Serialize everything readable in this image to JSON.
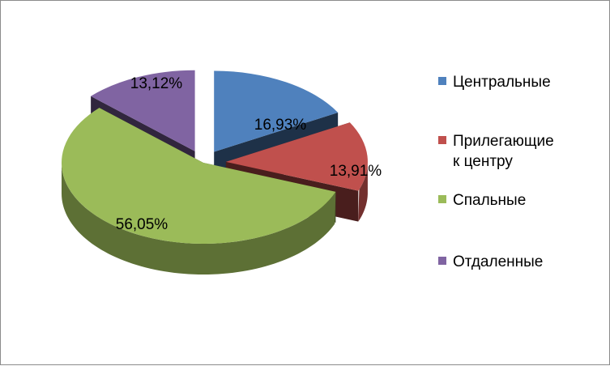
{
  "chart_data": {
    "type": "pie",
    "categories": [
      "Центральные",
      "Прилегающие к центру",
      "Спальные",
      "Отдаленные"
    ],
    "values": [
      16.93,
      13.91,
      56.05,
      13.12
    ],
    "data_labels": [
      "16,93%",
      "13,91%",
      "56,05%",
      "13,12%"
    ],
    "colors": [
      "#4f81bd",
      "#c0504d",
      "#9bbb59",
      "#8064a2"
    ],
    "legend_position": "right",
    "style": "3d-exploded"
  }
}
